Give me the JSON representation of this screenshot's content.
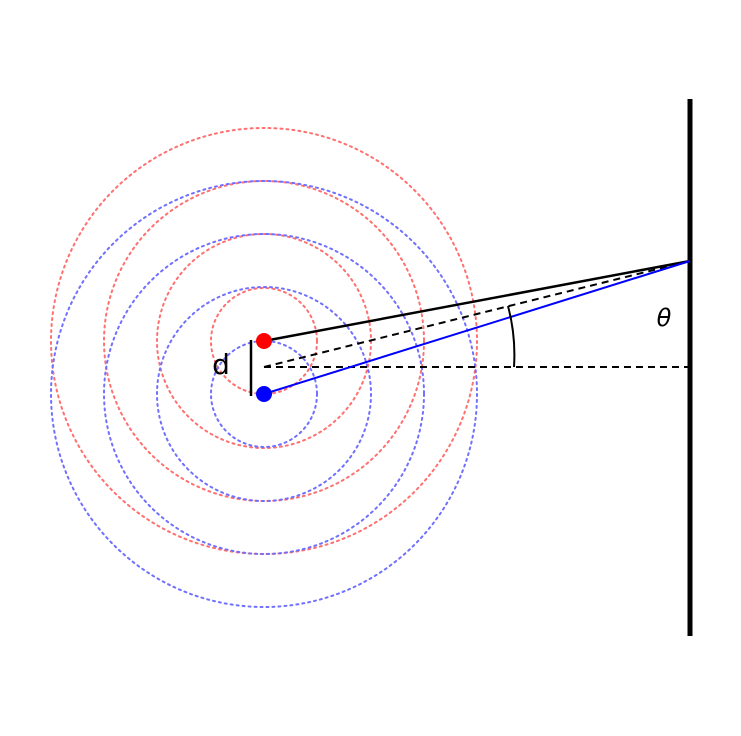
{
  "labels": {
    "separation": "d",
    "angle": "θ"
  },
  "colors": {
    "source_top": "#ff0000",
    "source_bottom": "#0000ff",
    "wave_top": "#ff7070",
    "wave_bottom": "#7070ff",
    "ray_top": "#000000",
    "ray_bottom": "#0000ff",
    "screen": "#000000",
    "axis": "#000000"
  },
  "icons": {
    "source_top": "red-dot",
    "source_bottom": "blue-dot"
  }
}
